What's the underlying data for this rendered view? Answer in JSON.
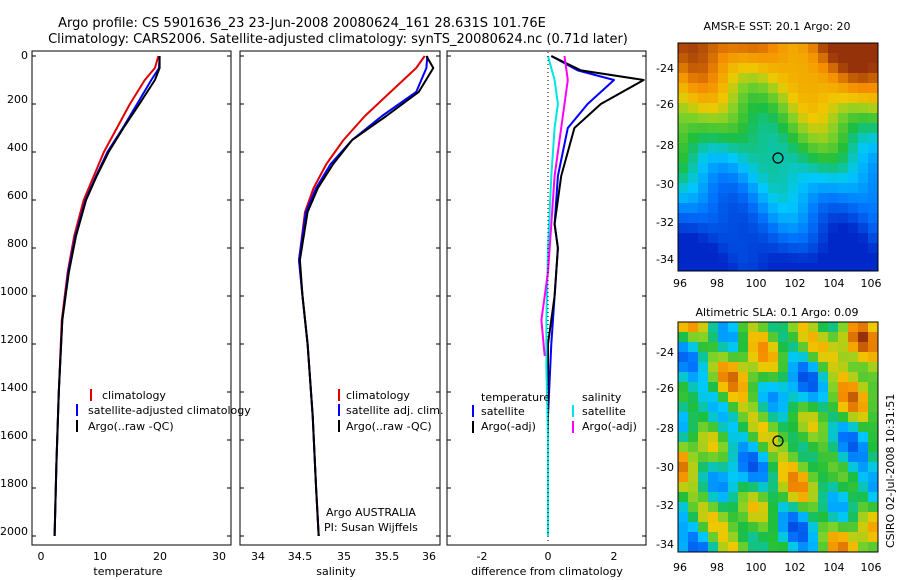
{
  "header": {
    "line1": "Argo profile: CS 5901636_23 23-Jun-2008 20080624_161 28.631S 101.76E",
    "line2": "Climatology: CARS2006. Satellite-adjusted climatology: synTS_20080624.nc (0.71d later)"
  },
  "footer_vertical": "CSIRO 02-Jul-2008 10:31:51",
  "colors": {
    "climatology": "#e00000",
    "satellite": "#0000ff",
    "argo": "#000000",
    "sat_salinity": "#00e5e5",
    "argo_salinity": "#ff00ff"
  },
  "panels": {
    "temperature": {
      "xlabel": "temperature",
      "xticks": [
        "0",
        "10",
        "20",
        "30"
      ],
      "legend": [
        "climatology",
        "satellite-adjusted climatology",
        "Argo(..raw -QC)"
      ]
    },
    "salinity": {
      "xlabel": "salinity",
      "xticks": [
        "34",
        "34.5",
        "35",
        "35.5",
        "36"
      ],
      "legend": [
        "climatology",
        "satellite adj. clim.",
        "Argo(..raw -QC)"
      ],
      "note1": "Argo AUSTRALIA",
      "note2": "PI: Susan Wijffels"
    },
    "difference": {
      "xlabel": "difference from climatology",
      "xticks": [
        "-2",
        "0",
        "2"
      ],
      "legend_t_title": "temperature",
      "legend_s_title": "salinity",
      "legend_t": [
        "satellite",
        "Argo(-adj)"
      ],
      "legend_s": [
        "satellite",
        "Argo(-adj)"
      ]
    },
    "depth_ticks": [
      "0",
      "200",
      "400",
      "600",
      "800",
      "1000",
      "1200",
      "1400",
      "1600",
      "1800",
      "2000"
    ]
  },
  "maps": {
    "sst_title": "AMSR-E SST: 20.1  Argo: 20",
    "sla_title": "Altimetric SLA: 0.1  Argo: 0.09",
    "lat_ticks": [
      "-24",
      "-26",
      "-28",
      "-30",
      "-32",
      "-34"
    ],
    "lon_ticks": [
      "96",
      "98",
      "100",
      "102",
      "104",
      "106"
    ]
  },
  "chart_data": [
    {
      "type": "line",
      "ylabel": "",
      "xlabel": "temperature",
      "xlim": [
        -2,
        32
      ],
      "ylim": [
        2050,
        0
      ],
      "series": [
        {
          "name": "climatology",
          "x": [
            19.8,
            19.2,
            17.5,
            15.0,
            12.8,
            10.6,
            8.9,
            7.2,
            5.6,
            4.5,
            3.5,
            3.0,
            2.6,
            2.3
          ],
          "y": [
            0,
            50,
            100,
            200,
            300,
            400,
            500,
            600,
            750,
            900,
            1100,
            1400,
            1700,
            2000
          ]
        },
        {
          "name": "satellite-adjusted climatology",
          "x": [
            20.0,
            19.9,
            18.6,
            16.2,
            13.8,
            11.2,
            9.3,
            7.5,
            5.8,
            4.6,
            3.6,
            3.0,
            2.6,
            2.3
          ],
          "y": [
            0,
            50,
            100,
            200,
            300,
            400,
            500,
            600,
            750,
            900,
            1100,
            1400,
            1700,
            2000
          ]
        },
        {
          "name": "Argo(..raw -QC)",
          "x": [
            20.0,
            20.0,
            19.2,
            16.6,
            13.9,
            11.4,
            9.4,
            7.6,
            5.9,
            4.7,
            3.6,
            3.0,
            2.6,
            2.3
          ],
          "y": [
            0,
            50,
            100,
            200,
            300,
            400,
            500,
            600,
            750,
            900,
            1100,
            1400,
            1700,
            2000
          ]
        }
      ]
    },
    {
      "type": "line",
      "ylabel": "",
      "xlabel": "salinity",
      "xlim": [
        33.8,
        36.1
      ],
      "ylim": [
        2050,
        0
      ],
      "series": [
        {
          "name": "climatology",
          "x": [
            35.95,
            35.85,
            35.55,
            35.25,
            35.0,
            34.8,
            34.65,
            34.55,
            34.48,
            34.52,
            34.58,
            34.64,
            34.68,
            34.71
          ],
          "y": [
            0,
            50,
            150,
            250,
            350,
            450,
            550,
            650,
            850,
            1000,
            1200,
            1500,
            1800,
            2000
          ]
        },
        {
          "name": "satellite adj. clim.",
          "x": [
            35.98,
            35.97,
            35.85,
            35.45,
            35.1,
            34.85,
            34.68,
            34.56,
            34.48,
            34.52,
            34.58,
            34.64,
            34.68,
            34.71
          ],
          "y": [
            0,
            50,
            150,
            250,
            350,
            450,
            550,
            650,
            850,
            1000,
            1200,
            1500,
            1800,
            2000
          ]
        },
        {
          "name": "Argo(..raw -QC)",
          "x": [
            35.97,
            36.05,
            35.88,
            35.5,
            35.1,
            34.88,
            34.7,
            34.58,
            34.49,
            34.52,
            34.58,
            34.64,
            34.68,
            34.71
          ],
          "y": [
            0,
            50,
            150,
            250,
            350,
            450,
            550,
            650,
            850,
            1000,
            1200,
            1500,
            1800,
            2000
          ]
        }
      ]
    },
    {
      "type": "line",
      "xlabel": "difference from climatology",
      "xlim": [
        -3,
        3
      ],
      "ylim": [
        2050,
        0
      ],
      "series": [
        {
          "name": "temperature satellite",
          "x": [
            0.1,
            0.9,
            2.0,
            1.2,
            0.6,
            0.3,
            0.2,
            0.3,
            0.2,
            0.1,
            0.0,
            0.0,
            0.0
          ],
          "y": [
            0,
            60,
            100,
            200,
            300,
            500,
            700,
            800,
            1000,
            1200,
            1500,
            1800,
            2000
          ]
        },
        {
          "name": "temperature Argo(-adj)",
          "x": [
            0.1,
            1.0,
            2.9,
            1.6,
            0.8,
            0.4,
            0.2,
            0.3,
            0.2,
            0.0,
            0.0,
            0.0,
            0.0
          ],
          "y": [
            0,
            60,
            100,
            200,
            300,
            500,
            700,
            800,
            1000,
            1200,
            1500,
            1800,
            2000
          ]
        },
        {
          "name": "salinity satellite",
          "x": [
            0.0,
            0.2,
            0.3,
            0.2,
            0.1,
            0.0,
            -0.05,
            -0.05,
            0.0,
            0.0
          ],
          "y": [
            0,
            100,
            200,
            300,
            500,
            800,
            1100,
            1300,
            1600,
            2000
          ]
        },
        {
          "name": "salinity Argo(-adj)",
          "x": [
            0.5,
            0.6,
            0.4,
            0.2,
            0.1,
            0.0,
            -0.2,
            -0.1
          ],
          "y": [
            0,
            100,
            300,
            500,
            700,
            900,
            1100,
            1250
          ]
        }
      ]
    }
  ]
}
